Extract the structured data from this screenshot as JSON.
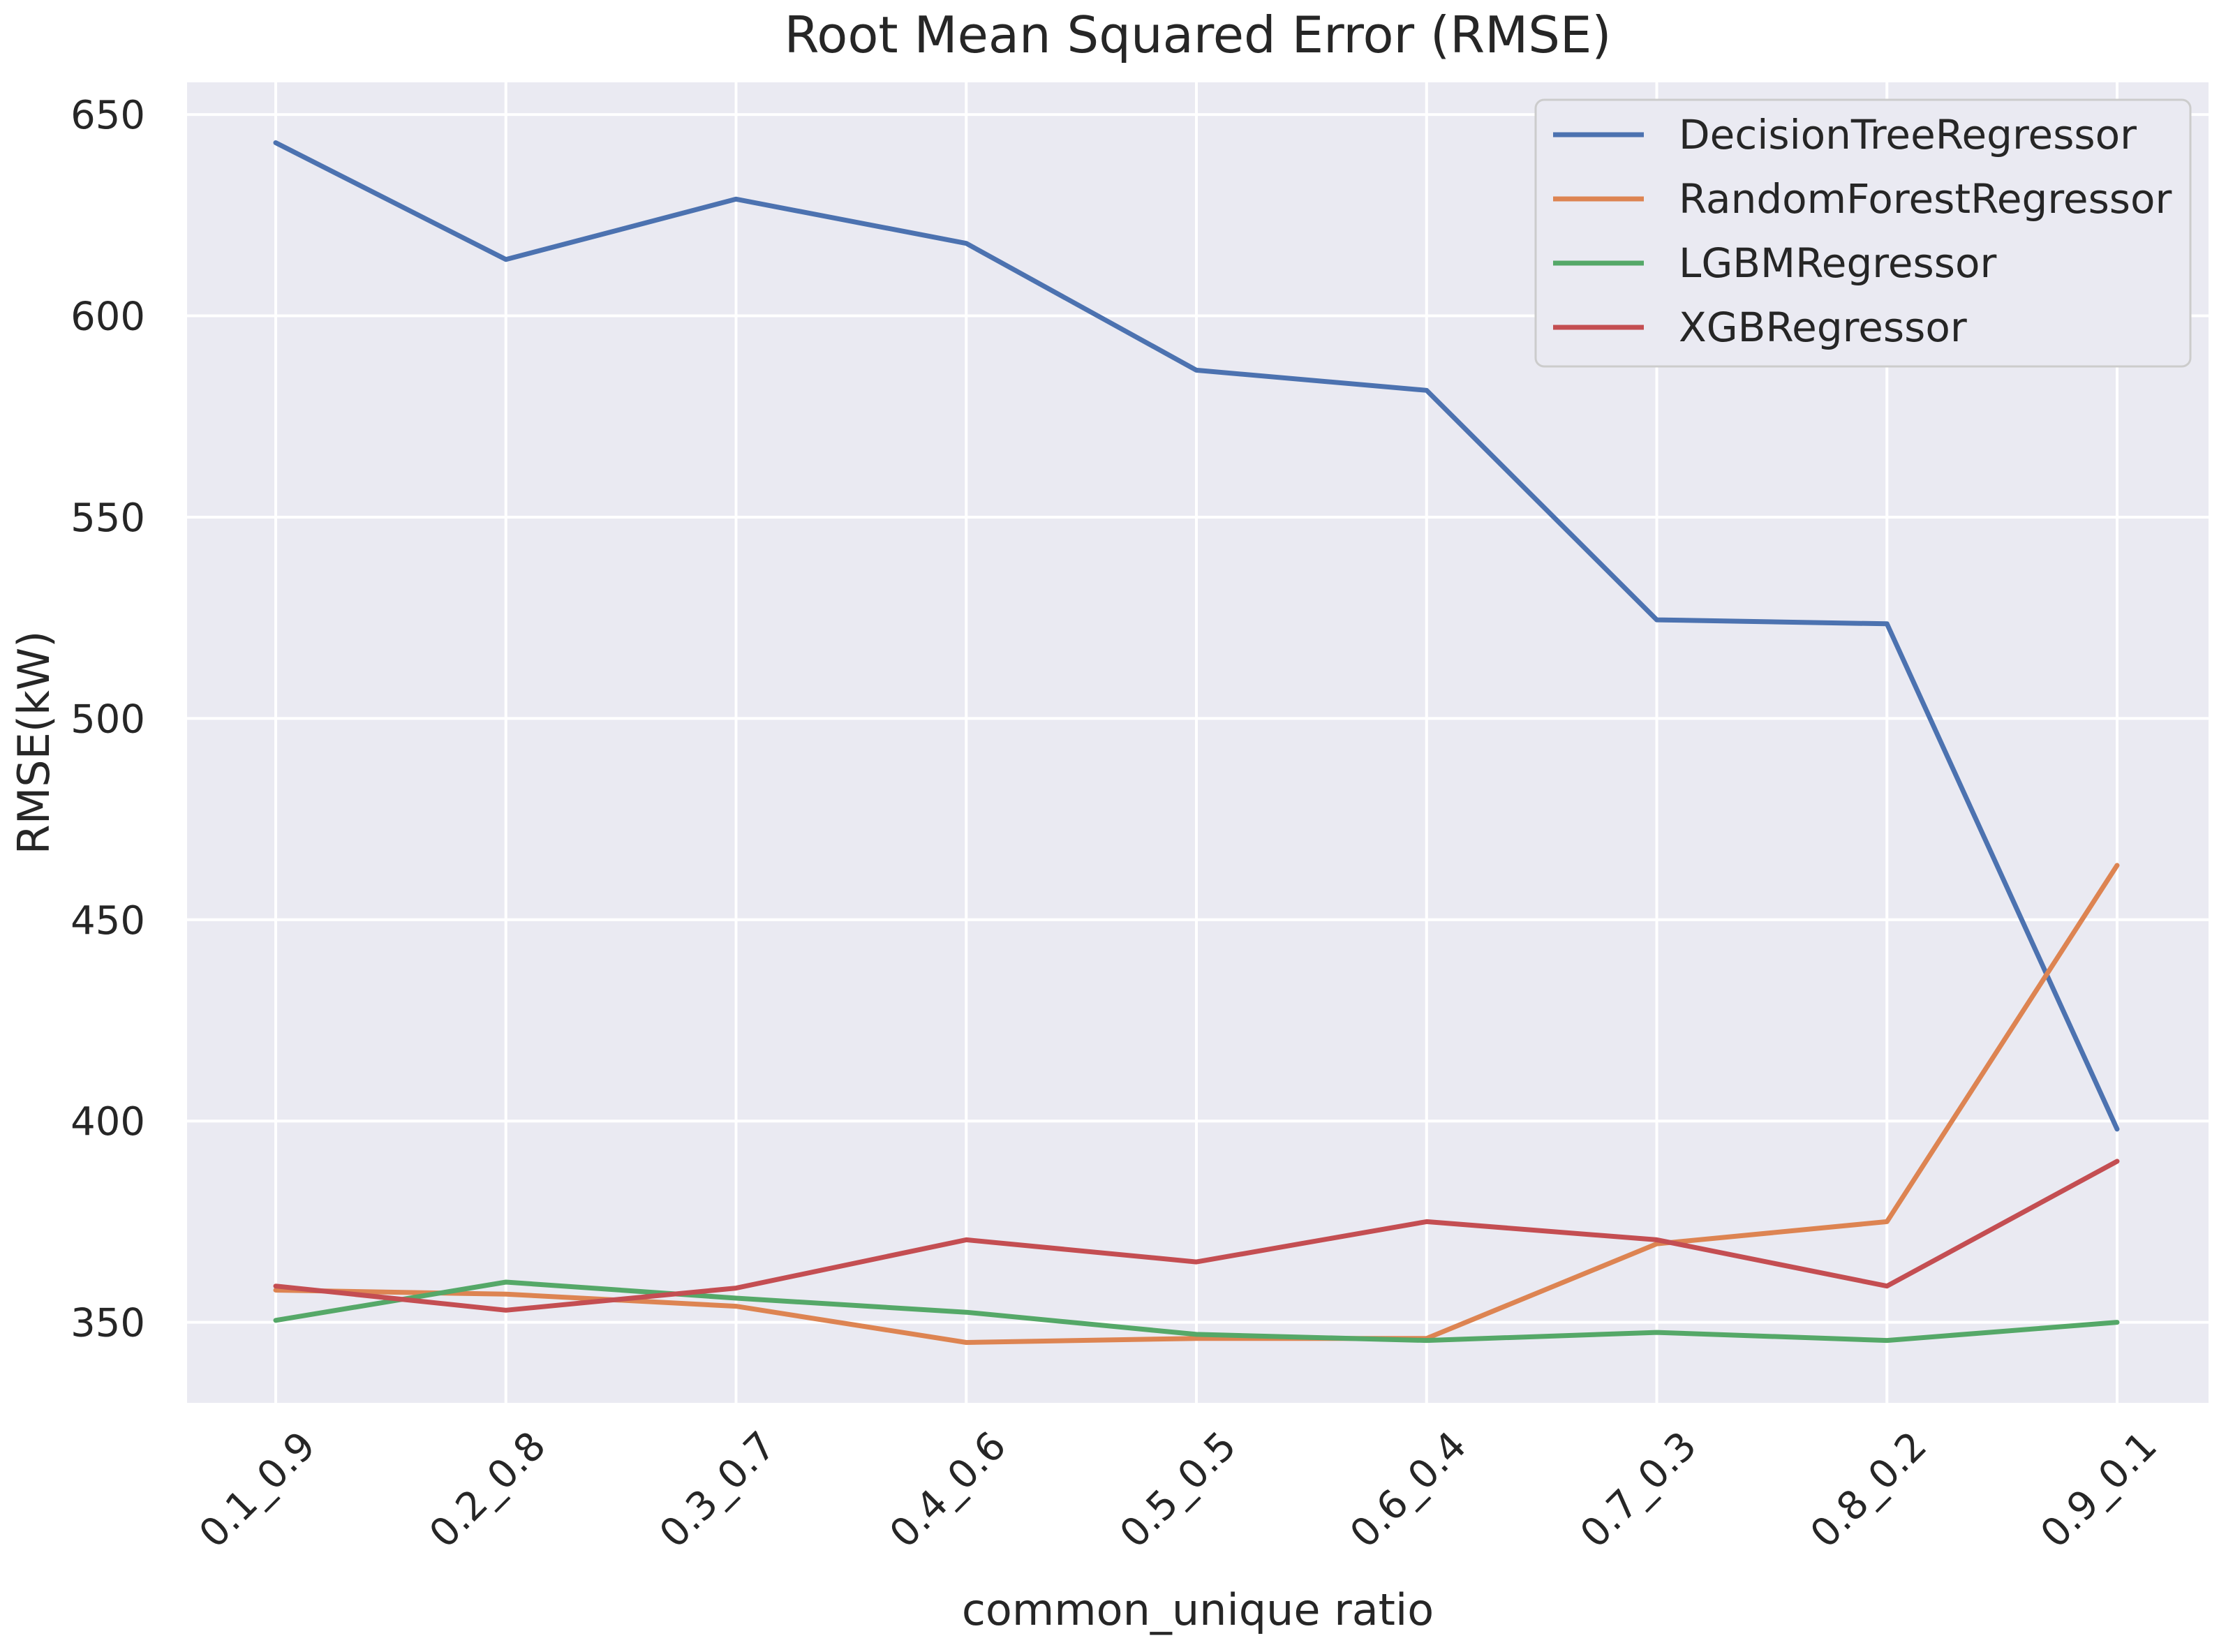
{
  "chart_data": {
    "type": "line",
    "title": "Root Mean Squared Error (RMSE)",
    "xlabel": "common_unique ratio",
    "ylabel": "RMSE(kW)",
    "categories": [
      "0.1_0.9",
      "0.2_0.8",
      "0.3_0.7",
      "0.4_0.6",
      "0.5_0.5",
      "0.6_0.4",
      "0.7_0.3",
      "0.8_0.2",
      "0.9_0.1"
    ],
    "ylim": [
      330,
      658
    ],
    "yticks": [
      350,
      400,
      450,
      500,
      550,
      600,
      650
    ],
    "grid": true,
    "legend_position": "top-right",
    "series": [
      {
        "name": "DecisionTreeRegressor",
        "color": "#4c72b0",
        "values": [
          643,
          614,
          629,
          618,
          586.5,
          581.5,
          524.5,
          523.5,
          398
        ]
      },
      {
        "name": "RandomForestRegressor",
        "color": "#dd8452",
        "values": [
          358,
          357,
          354,
          345,
          346,
          346,
          369.5,
          375,
          463.5
        ]
      },
      {
        "name": "LGBMRegressor",
        "color": "#55a868",
        "values": [
          350.5,
          360,
          356,
          352.5,
          347,
          345.5,
          347.5,
          345.5,
          350
        ]
      },
      {
        "name": "XGBRegressor",
        "color": "#c44e52",
        "values": [
          359,
          353,
          358.5,
          370.5,
          365,
          375,
          370.5,
          359,
          390
        ]
      }
    ]
  }
}
